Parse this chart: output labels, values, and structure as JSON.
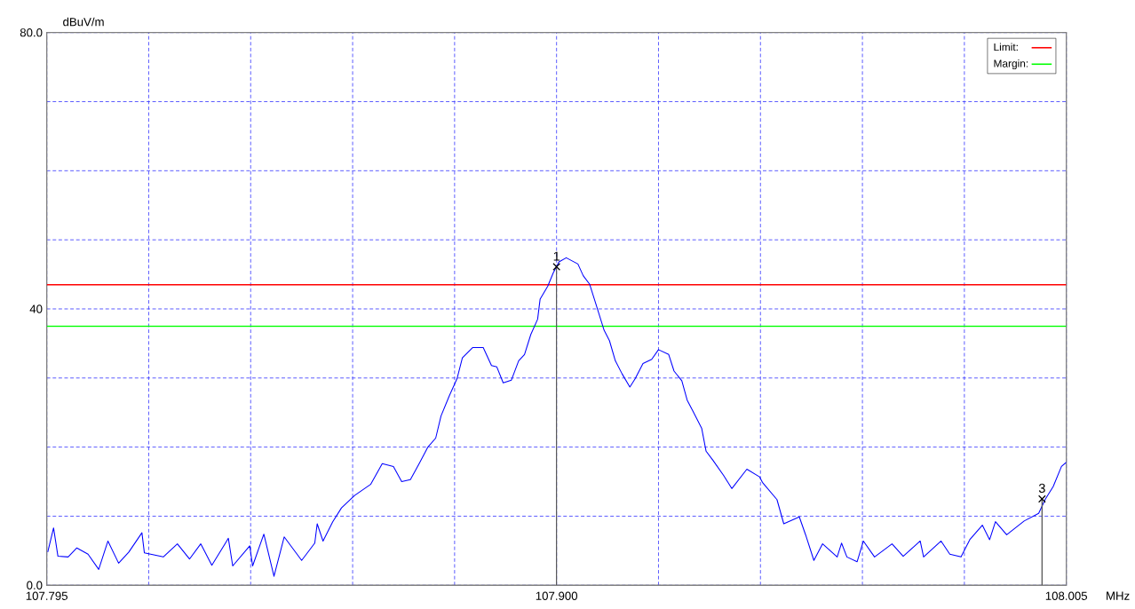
{
  "chart_data": {
    "type": "line",
    "xlabel": "MHz",
    "ylabel": "dBuV/m",
    "xlim": [
      107.795,
      108.005
    ],
    "ylim": [
      0,
      80
    ],
    "xticks": [
      {
        "value": 107.795,
        "label": "107.795"
      },
      {
        "value": 107.816,
        "label": null
      },
      {
        "value": 107.837,
        "label": null
      },
      {
        "value": 107.858,
        "label": null
      },
      {
        "value": 107.879,
        "label": null
      },
      {
        "value": 107.9,
        "label": "107.900"
      },
      {
        "value": 107.921,
        "label": null
      },
      {
        "value": 107.942,
        "label": null
      },
      {
        "value": 107.963,
        "label": null
      },
      {
        "value": 107.984,
        "label": null
      },
      {
        "value": 108.005,
        "label": "108.005"
      }
    ],
    "yticks": [
      {
        "value": 0,
        "label": "0.0"
      },
      {
        "value": 10,
        "label": null
      },
      {
        "value": 20,
        "label": null
      },
      {
        "value": 30,
        "label": null
      },
      40,
      {
        "value": 50,
        "label": null
      },
      {
        "value": 60,
        "label": null
      },
      {
        "value": 70,
        "label": null
      },
      {
        "value": 80,
        "label": "80.0"
      }
    ],
    "grid": true,
    "legend": "top right",
    "ref_lines": [
      {
        "axis": "y",
        "value": 43.5,
        "label": "Limit:",
        "color": "#ff0000"
      },
      {
        "axis": "y",
        "value": 37.5,
        "label": "Margin:",
        "color": "#00ff00"
      }
    ],
    "annotations": [
      {
        "text": "1",
        "x": 107.9,
        "y": 46.1
      },
      {
        "text": "3",
        "x": 108.0,
        "y": 12.5
      }
    ],
    "series": [
      {
        "color": "#0000ff",
        "x": [
          107.7952,
          107.7964,
          107.7973,
          107.7994,
          107.8012,
          107.8035,
          107.8057,
          107.8076,
          107.8098,
          107.8119,
          107.8146,
          107.8151,
          107.819,
          107.8219,
          107.8244,
          107.8267,
          107.829,
          107.8324,
          107.8333,
          107.8368,
          107.8374,
          107.8397,
          107.8418,
          107.8439,
          107.8475,
          107.8502,
          107.8507,
          107.8519,
          107.8539,
          107.8557,
          107.8584,
          107.8617,
          107.8641,
          107.8664,
          107.8681,
          107.8699,
          107.8717,
          107.8735,
          107.8751,
          107.8762,
          107.8779,
          107.8795,
          107.8806,
          107.8827,
          107.8849,
          107.8866,
          107.8877,
          107.889,
          107.8907,
          107.8922,
          107.8934,
          107.8947,
          107.8961,
          107.8966,
          107.8982,
          107.8993,
          107.9005,
          107.902,
          107.9044,
          107.9055,
          107.9068,
          107.9082,
          107.9098,
          107.9109,
          107.9121,
          107.9135,
          107.9151,
          107.9162,
          107.9178,
          107.9196,
          107.921,
          107.9231,
          107.9242,
          107.9258,
          107.9269,
          107.9281,
          107.9299,
          107.9308,
          107.9322,
          107.9344,
          107.9361,
          107.9392,
          107.9418,
          107.9424,
          107.9454,
          107.9468,
          107.95,
          107.9513,
          107.953,
          107.9548,
          107.9578,
          107.9587,
          107.9598,
          107.9619,
          107.9632,
          107.9655,
          107.9691,
          107.9714,
          107.9749,
          107.9756,
          107.9792,
          107.981,
          107.9833,
          107.9851,
          107.9877,
          107.9892,
          107.9904,
          107.9927,
          107.9963,
          107.9993,
          108.0007,
          108.0023,
          108.004,
          108.005
        ],
        "values": [
          4.8,
          8.3,
          4.2,
          4.1,
          5.4,
          4.5,
          2.3,
          6.4,
          3.2,
          4.8,
          7.6,
          4.7,
          4.1,
          6.0,
          3.8,
          6.0,
          2.9,
          6.8,
          2.8,
          5.7,
          2.8,
          7.4,
          1.3,
          7.0,
          3.6,
          6.1,
          8.9,
          6.4,
          9.2,
          11.2,
          13.0,
          14.6,
          17.6,
          17.2,
          15.0,
          15.3,
          17.6,
          20.0,
          21.3,
          24.5,
          27.4,
          29.9,
          32.9,
          34.4,
          34.4,
          31.8,
          31.6,
          29.3,
          29.7,
          32.5,
          33.4,
          36.3,
          38.5,
          41.4,
          43.3,
          45.2,
          46.8,
          47.4,
          46.5,
          44.8,
          43.6,
          40.5,
          36.9,
          35.4,
          32.5,
          30.6,
          28.7,
          29.9,
          32.1,
          32.7,
          34.1,
          33.4,
          31.0,
          29.6,
          26.8,
          25.2,
          22.7,
          19.4,
          18.1,
          15.9,
          14.0,
          16.8,
          15.7,
          14.9,
          12.4,
          8.9,
          9.9,
          7.3,
          3.6,
          6.0,
          4.1,
          6.1,
          4.1,
          3.4,
          6.4,
          4.1,
          6.0,
          4.2,
          6.4,
          4.1,
          6.4,
          4.5,
          4.1,
          6.6,
          8.7,
          6.6,
          9.2,
          7.3,
          9.3,
          10.4,
          12.5,
          14.3,
          17.2,
          17.8
        ]
      }
    ]
  }
}
